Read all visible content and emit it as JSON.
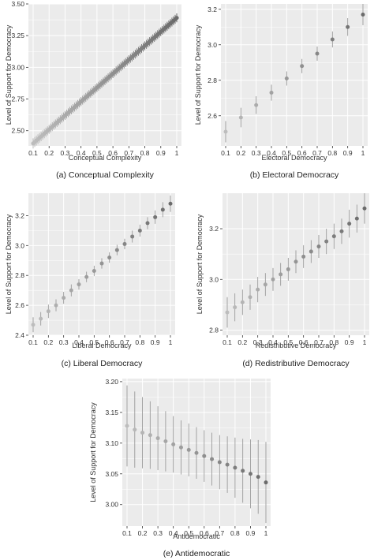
{
  "y_axis_label": "Level of Support for Democracy",
  "colors": {
    "panel_bg": "#ebebeb",
    "grid": "#ffffff",
    "light_point": "#bdbdbd",
    "dark_point": "#6b6b6b",
    "error_bar": "#9a9a9a"
  },
  "chart_data": [
    {
      "type": "scatter",
      "caption": "(a) Conceptual Complexity",
      "xlabel": "Conceptual Complexity",
      "ylabel": "Level of Support for Democracy",
      "grid": true,
      "xlim": [
        0.1,
        1.0
      ],
      "ylim": [
        2.38,
        3.5
      ],
      "x_ticks": [
        0.1,
        0.2,
        0.3,
        0.4,
        0.5,
        0.6,
        0.7,
        0.8,
        0.9,
        1.0
      ],
      "x_tick_labels": [
        "0.1",
        "0.2",
        "0.3",
        "0.4",
        "0.5",
        "0.6",
        "0.7",
        "0.8",
        "0.9",
        "1"
      ],
      "y_ticks": [
        2.5,
        2.75,
        3.0,
        3.25,
        3.5
      ],
      "y_tick_labels": [
        "2.50",
        "2.75",
        "3.00",
        "3.25",
        "3.50"
      ],
      "dense": true,
      "x": [
        0.1,
        0.2,
        0.3,
        0.4,
        0.5,
        0.6,
        0.7,
        0.8,
        0.9,
        1.0
      ],
      "y": [
        2.4,
        2.51,
        2.62,
        2.73,
        2.84,
        2.95,
        3.06,
        3.17,
        3.28,
        3.39
      ],
      "err": [
        0.04,
        0.035,
        0.035,
        0.035,
        0.035,
        0.035,
        0.035,
        0.035,
        0.035,
        0.035
      ]
    },
    {
      "type": "scatter",
      "caption": "(b) Electoral Democracy",
      "xlabel": "Electoral Democracy",
      "ylabel": "Level of Support for Democracy",
      "grid": true,
      "xlim": [
        0.1,
        1.0
      ],
      "ylim": [
        2.43,
        3.23
      ],
      "x_ticks": [
        0.1,
        0.2,
        0.3,
        0.4,
        0.5,
        0.6,
        0.7,
        0.8,
        0.9,
        1.0
      ],
      "x_tick_labels": [
        "0.1",
        "0.2",
        "0.3",
        "0.4",
        "0.5",
        "0.6",
        "0.7",
        "0.8",
        "0.9",
        "1"
      ],
      "y_ticks": [
        2.6,
        2.8,
        3.0,
        3.2
      ],
      "y_tick_labels": [
        "2.6",
        "2.8",
        "3.0",
        "3.2"
      ],
      "dense": false,
      "x": [
        0.1,
        0.2,
        0.3,
        0.4,
        0.5,
        0.6,
        0.7,
        0.8,
        0.9,
        1.0
      ],
      "y": [
        2.51,
        2.59,
        2.66,
        2.73,
        2.81,
        2.88,
        2.95,
        3.03,
        3.1,
        3.17
      ],
      "err": [
        0.06,
        0.055,
        0.05,
        0.045,
        0.04,
        0.04,
        0.04,
        0.045,
        0.05,
        0.06
      ]
    },
    {
      "type": "scatter",
      "caption": "(c) Liberal Democracy",
      "xlabel": "Liberal Democracy",
      "ylabel": "Level of Support for Democracy",
      "grid": true,
      "xlim": [
        0.1,
        1.0
      ],
      "ylim": [
        2.4,
        3.35
      ],
      "x_ticks": [
        0.1,
        0.2,
        0.3,
        0.4,
        0.5,
        0.6,
        0.7,
        0.8,
        0.9,
        1.0
      ],
      "x_tick_labels": [
        "0.1",
        "0.2",
        "0.3",
        "0.4",
        "0.5",
        "0.6",
        "0.7",
        "0.8",
        "0.9",
        "1"
      ],
      "y_ticks": [
        2.4,
        2.6,
        2.8,
        3.0,
        3.2
      ],
      "y_tick_labels": [
        "2.4",
        "2.6",
        "2.8",
        "3.0",
        "3.2"
      ],
      "dense": false,
      "x": [
        0.1,
        0.15,
        0.2,
        0.25,
        0.3,
        0.35,
        0.4,
        0.45,
        0.5,
        0.55,
        0.6,
        0.65,
        0.7,
        0.75,
        0.8,
        0.85,
        0.9,
        0.95,
        1.0
      ],
      "y": [
        2.47,
        2.51,
        2.56,
        2.6,
        2.65,
        2.7,
        2.74,
        2.79,
        2.83,
        2.88,
        2.92,
        2.97,
        3.01,
        3.06,
        3.1,
        3.15,
        3.19,
        3.24,
        3.28
      ],
      "err": [
        0.05,
        0.045,
        0.045,
        0.04,
        0.04,
        0.04,
        0.035,
        0.035,
        0.035,
        0.035,
        0.035,
        0.035,
        0.035,
        0.04,
        0.04,
        0.04,
        0.045,
        0.05,
        0.055
      ]
    },
    {
      "type": "scatter",
      "caption": "(d) Redistributive Democracy",
      "xlabel": "Redistributive Democracy",
      "ylabel": "Level of Support for Democracy",
      "grid": true,
      "xlim": [
        0.1,
        1.0
      ],
      "ylim": [
        2.78,
        3.34
      ],
      "x_ticks": [
        0.1,
        0.2,
        0.3,
        0.4,
        0.5,
        0.6,
        0.7,
        0.8,
        0.9,
        1.0
      ],
      "x_tick_labels": [
        "0.1",
        "0.2",
        "0.3",
        "0.4",
        "0.5",
        "0.6",
        "0.7",
        "0.8",
        "0.9",
        "1"
      ],
      "y_ticks": [
        2.8,
        3.0,
        3.2
      ],
      "y_tick_labels": [
        "2.8",
        "3.0",
        "3.2"
      ],
      "dense": false,
      "x": [
        0.1,
        0.15,
        0.2,
        0.25,
        0.3,
        0.35,
        0.4,
        0.45,
        0.5,
        0.55,
        0.6,
        0.65,
        0.7,
        0.75,
        0.8,
        0.85,
        0.9,
        0.95,
        1.0
      ],
      "y": [
        2.87,
        2.89,
        2.91,
        2.93,
        2.96,
        2.98,
        3.0,
        3.02,
        3.04,
        3.07,
        3.09,
        3.11,
        3.13,
        3.15,
        3.17,
        3.19,
        3.22,
        3.24,
        3.28
      ],
      "err": [
        0.06,
        0.055,
        0.05,
        0.05,
        0.05,
        0.045,
        0.045,
        0.045,
        0.045,
        0.045,
        0.045,
        0.045,
        0.045,
        0.05,
        0.05,
        0.05,
        0.055,
        0.055,
        0.06
      ]
    },
    {
      "type": "scatter",
      "caption": "(e) Antidemocratic",
      "xlabel": "Antidemocratic",
      "ylabel": "Level of Support for Democracy",
      "grid": true,
      "xlim": [
        0.1,
        1.0
      ],
      "ylim": [
        2.965,
        3.205
      ],
      "x_ticks": [
        0.1,
        0.2,
        0.3,
        0.4,
        0.5,
        0.6,
        0.7,
        0.8,
        0.9,
        1.0
      ],
      "x_tick_labels": [
        "0.1",
        "0.2",
        "0.3",
        "0.4",
        "0.5",
        "0.6",
        "0.7",
        "0.8",
        "0.9",
        "1"
      ],
      "y_ticks": [
        3.0,
        3.05,
        3.1,
        3.15,
        3.2
      ],
      "y_tick_labels": [
        "3.00",
        "3.05",
        "3.10",
        "3.15",
        "3.20"
      ],
      "dense": false,
      "x": [
        0.1,
        0.15,
        0.2,
        0.25,
        0.3,
        0.35,
        0.4,
        0.45,
        0.5,
        0.55,
        0.6,
        0.65,
        0.7,
        0.75,
        0.8,
        0.85,
        0.9,
        0.95,
        1.0
      ],
      "y": [
        3.128,
        3.122,
        3.117,
        3.113,
        3.108,
        3.103,
        3.098,
        3.093,
        3.089,
        3.084,
        3.079,
        3.074,
        3.069,
        3.065,
        3.06,
        3.055,
        3.05,
        3.045,
        3.036
      ],
      "err": [
        0.066,
        0.062,
        0.058,
        0.055,
        0.052,
        0.049,
        0.046,
        0.044,
        0.043,
        0.042,
        0.042,
        0.043,
        0.044,
        0.046,
        0.049,
        0.052,
        0.056,
        0.06,
        0.066
      ]
    }
  ]
}
